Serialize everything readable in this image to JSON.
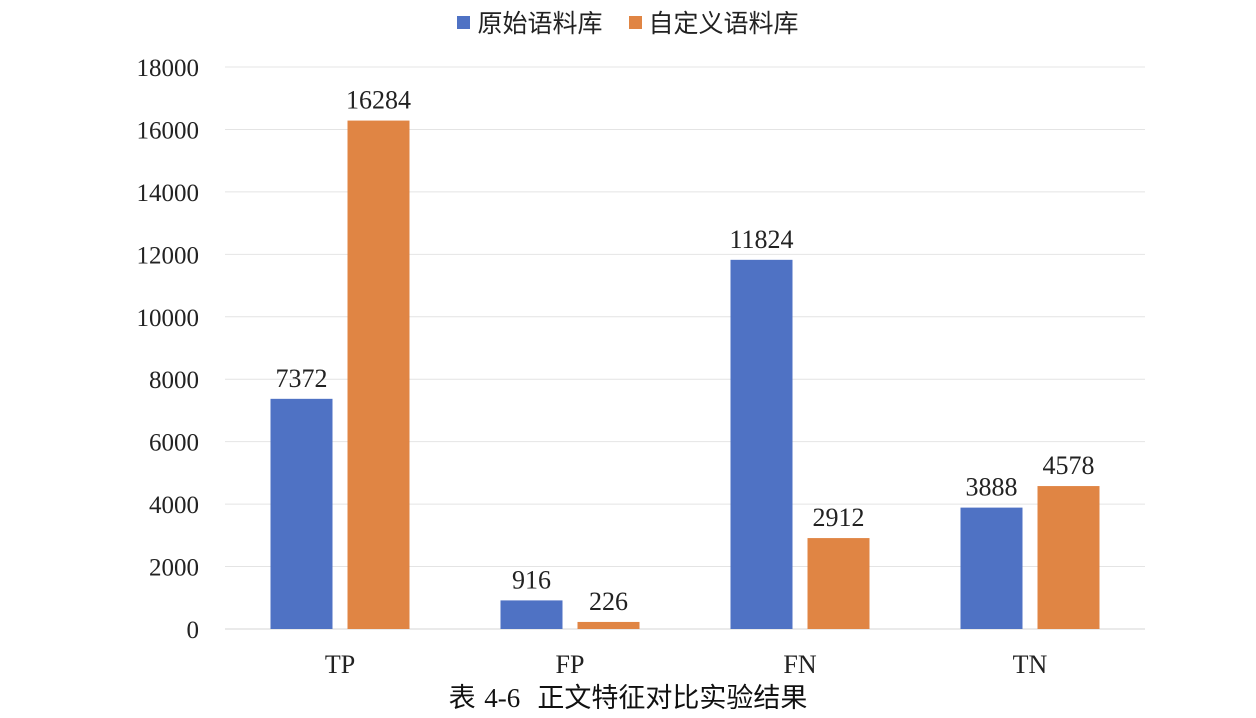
{
  "chart_data": {
    "type": "bar",
    "categories": [
      "TP",
      "FP",
      "FN",
      "TN"
    ],
    "series": [
      {
        "name": "原始语料库",
        "color": "#4f72c4",
        "values": [
          7372,
          916,
          11824,
          3888
        ]
      },
      {
        "name": "自定义语料库",
        "color": "#e08544",
        "values": [
          16284,
          226,
          2912,
          4578
        ]
      }
    ],
    "ylim": [
      0,
      18000
    ],
    "yticks": [
      0,
      2000,
      4000,
      6000,
      8000,
      10000,
      12000,
      14000,
      16000,
      18000
    ],
    "grid": true,
    "legend_position": "top-center",
    "data_labels": true
  },
  "caption": {
    "prefix": "表",
    "number": "4-6",
    "title": "正文特征对比实验结果"
  }
}
